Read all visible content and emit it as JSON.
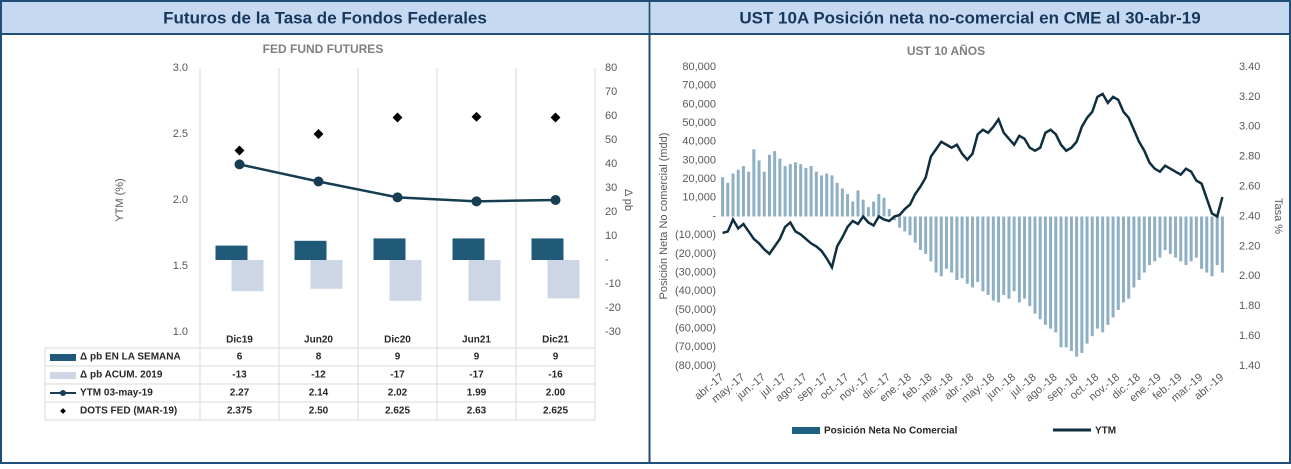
{
  "panels": [
    "Futuros de la Tasa de Fondos Federales",
    "UST 10A Posición neta no-comercial en CME al 30-abr-19"
  ],
  "chart_data": [
    {
      "type": "bar",
      "title": "FED FUND FUTURES",
      "y_label": "YTM (%)",
      "y2_label": "Δ pb",
      "categories": [
        "Dic19",
        "Jun20",
        "Dic20",
        "Jun21",
        "Dic21"
      ],
      "ylim": [
        1,
        3
      ],
      "yticks": [
        {
          "value": 1,
          "label": "1.0"
        },
        1.5,
        {
          "value": 2,
          "label": "2.0"
        },
        2.5,
        {
          "value": 3,
          "label": "3.0"
        }
      ],
      "y2lim": [
        -30,
        80
      ],
      "y2ticks": [
        -30,
        -20,
        -10,
        {
          "value": 0,
          "label": "-"
        },
        10,
        20,
        30,
        40,
        50,
        60,
        70,
        80
      ],
      "series": [
        {
          "name": "Δ pb EN LA SEMANA",
          "kind": "bar",
          "axis": "y2",
          "color": "#215a78",
          "values": [
            6,
            8,
            9,
            9,
            9
          ]
        },
        {
          "name": "Δ pb ACUM. 2019",
          "kind": "bar",
          "axis": "y2",
          "color": "#cdd6e4",
          "values": [
            -13,
            -12,
            -17,
            -17,
            -16
          ]
        },
        {
          "name": "YTM 03-may-19",
          "kind": "line",
          "axis": "y",
          "color": "#163d52",
          "values": [
            2.27,
            2.14,
            2.02,
            1.99,
            2.0
          ],
          "value_labels": [
            "2.27",
            "2.14",
            "2.02",
            "1.99",
            "2.00"
          ]
        },
        {
          "name": "DOTS FED (MAR-19)",
          "kind": "scatter",
          "axis": "y",
          "color": "#000000",
          "values": [
            2.375,
            2.5,
            2.625,
            2.63,
            2.625
          ],
          "value_labels": [
            "2.375",
            "2.50",
            "2.625",
            "2.63",
            "2.625"
          ]
        }
      ]
    },
    {
      "type": "bar",
      "title": "UST 10 AÑOS",
      "y_label": "Posición Neta No comercial (mdd)",
      "y2_label": "Tasa %",
      "categories": [
        "abr.-17",
        null,
        null,
        null,
        "may.-17",
        null,
        null,
        null,
        "jun.-17",
        null,
        null,
        null,
        "jul.-17",
        null,
        null,
        null,
        "ago.-17",
        null,
        null,
        null,
        "sep.-17",
        null,
        null,
        null,
        "oct.-17",
        null,
        null,
        null,
        "nov.-17",
        null,
        null,
        null,
        "dic.-17",
        null,
        null,
        null,
        "ene.-18",
        null,
        null,
        null,
        "feb.-18",
        null,
        null,
        null,
        "mar.-18",
        null,
        null,
        null,
        "abr.-18",
        null,
        null,
        null,
        "may.-18",
        null,
        null,
        null,
        "jun.-18",
        null,
        null,
        null,
        "jul.-18",
        null,
        null,
        null,
        "ago.-18",
        null,
        null,
        null,
        "sep.-18",
        null,
        null,
        null,
        "oct.-18",
        null,
        null,
        null,
        "nov.-18",
        null,
        null,
        null,
        "dic.-18",
        null,
        null,
        null,
        "ene.-19",
        null,
        null,
        null,
        "feb.-19",
        null,
        null,
        null,
        "mar.-19",
        null,
        null,
        null,
        "abr.-19"
      ],
      "ylim": [
        -80000,
        80000
      ],
      "yticks": [
        {
          "value": -80000,
          "label": "(80,000)"
        },
        {
          "value": -70000,
          "label": "(70,000)"
        },
        {
          "value": -60000,
          "label": "(60,000)"
        },
        {
          "value": -50000,
          "label": "(50,000)"
        },
        {
          "value": -40000,
          "label": "(40,000)"
        },
        {
          "value": -30000,
          "label": "(30,000)"
        },
        {
          "value": -20000,
          "label": "(20,000)"
        },
        {
          "value": -10000,
          "label": "(10,000)"
        },
        {
          "value": 0,
          "label": "-"
        },
        {
          "value": 10000,
          "label": "10,000"
        },
        {
          "value": 20000,
          "label": "20,000"
        },
        {
          "value": 30000,
          "label": "30,000"
        },
        {
          "value": 40000,
          "label": "40,000"
        },
        {
          "value": 50000,
          "label": "50,000"
        },
        {
          "value": 60000,
          "label": "60,000"
        },
        {
          "value": 70000,
          "label": "70,000"
        },
        {
          "value": 80000,
          "label": "80,000"
        }
      ],
      "y2lim": [
        1.4,
        3.4
      ],
      "y2ticks": [
        {
          "value": 1.4,
          "label": "1.40"
        },
        {
          "value": 1.6,
          "label": "1.60"
        },
        {
          "value": 1.8,
          "label": "1.80"
        },
        {
          "value": 2.0,
          "label": "2.00"
        },
        {
          "value": 2.2,
          "label": "2.20"
        },
        {
          "value": 2.4,
          "label": "2.40"
        },
        {
          "value": 2.6,
          "label": "2.60"
        },
        {
          "value": 2.8,
          "label": "2.80"
        },
        {
          "value": 3.0,
          "label": "3.00"
        },
        {
          "value": 3.2,
          "label": "3.20"
        },
        {
          "value": 3.4,
          "label": "3.40"
        }
      ],
      "series": [
        {
          "name": "Posición Neta No Comercial",
          "kind": "bar",
          "axis": "y",
          "color": "#8fb0c4",
          "values": [
            21000,
            18000,
            23000,
            25000,
            27000,
            24000,
            36000,
            30000,
            24000,
            33000,
            35000,
            31000,
            27000,
            28000,
            29000,
            28000,
            26000,
            27000,
            24000,
            22000,
            23000,
            22000,
            18000,
            15000,
            12000,
            8000,
            14000,
            9000,
            5000,
            8000,
            12000,
            10000,
            4000,
            -2000,
            -6000,
            -8000,
            -10000,
            -14000,
            -18000,
            -20000,
            -24000,
            -30000,
            -32000,
            -28000,
            -30000,
            -34000,
            -33000,
            -36000,
            -38000,
            -35000,
            -40000,
            -42000,
            -45000,
            -46000,
            -42000,
            -44000,
            -40000,
            -46000,
            -44000,
            -48000,
            -52000,
            -55000,
            -58000,
            -60000,
            -62000,
            -70000,
            -70000,
            -72000,
            -75000,
            -73000,
            -68000,
            -64000,
            -60000,
            -62000,
            -58000,
            -54000,
            -50000,
            -46000,
            -44000,
            -38000,
            -34000,
            -30000,
            -26000,
            -24000,
            -22000,
            -18000,
            -20000,
            -22000,
            -24000,
            -26000,
            -24000,
            -22000,
            -28000,
            -30000,
            -32000,
            -26000,
            -30000
          ]
        },
        {
          "name": "YTM",
          "kind": "line",
          "axis": "y2",
          "color": "#0f2e3f",
          "values": [
            2.29,
            2.3,
            2.38,
            2.32,
            2.35,
            2.3,
            2.25,
            2.22,
            2.18,
            2.15,
            2.2,
            2.25,
            2.33,
            2.36,
            2.3,
            2.28,
            2.25,
            2.22,
            2.2,
            2.17,
            2.12,
            2.06,
            2.2,
            2.26,
            2.33,
            2.37,
            2.35,
            2.4,
            2.36,
            2.34,
            2.4,
            2.38,
            2.37,
            2.4,
            2.41,
            2.45,
            2.48,
            2.55,
            2.6,
            2.66,
            2.8,
            2.85,
            2.9,
            2.88,
            2.86,
            2.88,
            2.82,
            2.78,
            2.82,
            2.95,
            2.98,
            2.96,
            3.0,
            3.05,
            2.96,
            2.92,
            2.88,
            2.94,
            2.92,
            2.86,
            2.84,
            2.86,
            2.96,
            2.98,
            2.95,
            2.88,
            2.84,
            2.86,
            2.9,
            3.0,
            3.06,
            3.1,
            3.2,
            3.22,
            3.16,
            3.2,
            3.18,
            3.1,
            3.06,
            2.98,
            2.9,
            2.84,
            2.76,
            2.72,
            2.7,
            2.74,
            2.72,
            2.7,
            2.68,
            2.72,
            2.7,
            2.64,
            2.62,
            2.52,
            2.42,
            2.4,
            2.53
          ]
        }
      ]
    }
  ]
}
